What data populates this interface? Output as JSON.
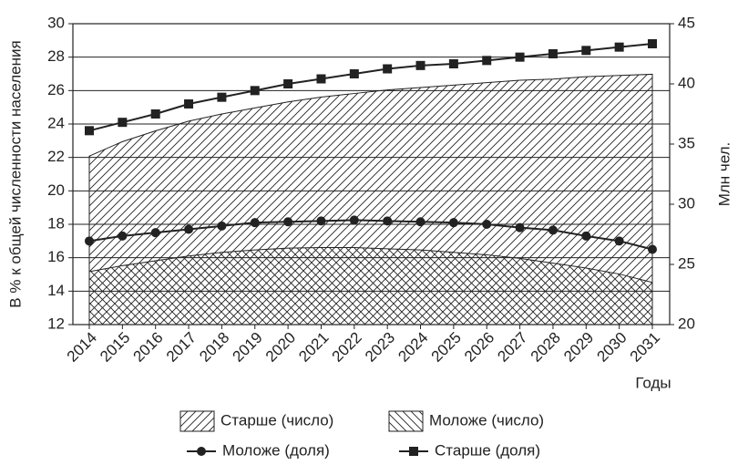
{
  "chart_data": {
    "type": "line",
    "ylabel": "В % к общей численности населения",
    "y2label": "Млн чел.",
    "xlabel": "Годы",
    "categories": [
      "2014",
      "2015",
      "2016",
      "2017",
      "2018",
      "2019",
      "2020",
      "2021",
      "2022",
      "2023",
      "2024",
      "2025",
      "2026",
      "2027",
      "2028",
      "2029",
      "2030",
      "2031"
    ],
    "ylim": [
      12,
      30
    ],
    "yticks": [
      12,
      14,
      16,
      18,
      20,
      22,
      24,
      26,
      28,
      30
    ],
    "y2lim": [
      20,
      45
    ],
    "y2ticks": [
      20,
      25,
      30,
      35,
      40,
      45
    ],
    "grid": true,
    "series": [
      {
        "name": "Старше (число)",
        "type": "area",
        "hatch": "forward",
        "color": "#222222",
        "axis": "y2",
        "values": [
          34.0,
          35.2,
          36.1,
          36.9,
          37.5,
          38.0,
          38.5,
          38.9,
          39.2,
          39.5,
          39.7,
          39.9,
          40.1,
          40.3,
          40.4,
          40.6,
          40.7,
          40.8
        ]
      },
      {
        "name": "Моложе (число)",
        "type": "area",
        "hatch": "back",
        "color": "#222222",
        "axis": "y2",
        "values": [
          24.4,
          24.9,
          25.3,
          25.7,
          26.0,
          26.2,
          26.35,
          26.4,
          26.4,
          26.3,
          26.2,
          26.0,
          25.8,
          25.5,
          25.1,
          24.7,
          24.2,
          23.5
        ]
      },
      {
        "name": "Моложе (доля)",
        "type": "line",
        "marker": "circle",
        "color": "#222222",
        "values": [
          17.0,
          17.3,
          17.5,
          17.7,
          17.9,
          18.1,
          18.15,
          18.2,
          18.25,
          18.2,
          18.15,
          18.1,
          18.0,
          17.8,
          17.65,
          17.3,
          17.0,
          16.5
        ]
      },
      {
        "name": "Старше (доля)",
        "type": "line",
        "marker": "square",
        "color": "#222222",
        "values": [
          23.6,
          24.1,
          24.6,
          25.2,
          25.6,
          26.0,
          26.4,
          26.7,
          27.0,
          27.3,
          27.5,
          27.6,
          27.8,
          28.0,
          28.2,
          28.4,
          28.6,
          28.8
        ]
      }
    ]
  }
}
